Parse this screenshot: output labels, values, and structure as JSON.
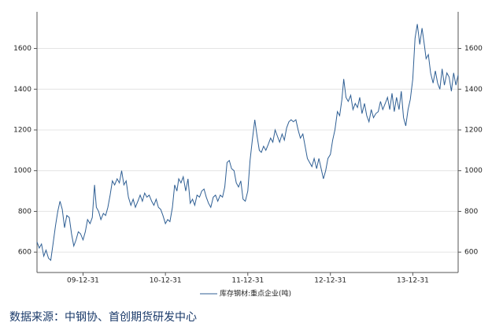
{
  "chart_data": {
    "type": "line",
    "xticks": [
      "09-12-31",
      "10-12-31",
      "11-12-31",
      "12-12-31",
      "13-12-31"
    ],
    "xlim": [
      "09-06-10",
      "14-07-20"
    ],
    "ylim": [
      500,
      1780
    ],
    "yticks": [
      600,
      800,
      1000,
      1200,
      1400,
      1600
    ],
    "y2lim": [
      500,
      1780
    ],
    "y2ticks": [
      600,
      800,
      1000,
      1200,
      1400,
      1600
    ],
    "grid": true,
    "source": "数据来源：中钢协、首创期货研发中心",
    "x": [
      "09-06-10",
      "09-06-20",
      "09-06-30",
      "09-07-10",
      "09-07-20",
      "09-07-31",
      "09-08-10",
      "09-08-20",
      "09-08-31",
      "09-09-10",
      "09-09-20",
      "09-09-30",
      "09-10-10",
      "09-10-20",
      "09-10-31",
      "09-11-10",
      "09-11-20",
      "09-11-30",
      "09-12-10",
      "09-12-20",
      "09-12-31",
      "10-01-10",
      "10-01-20",
      "10-01-31",
      "10-02-10",
      "10-02-20",
      "10-02-28",
      "10-03-10",
      "10-03-20",
      "10-03-31",
      "10-04-10",
      "10-04-20",
      "10-04-30",
      "10-05-10",
      "10-05-20",
      "10-05-31",
      "10-06-10",
      "10-06-20",
      "10-06-30",
      "10-07-10",
      "10-07-20",
      "10-07-31",
      "10-08-10",
      "10-08-20",
      "10-08-31",
      "10-09-10",
      "10-09-20",
      "10-09-30",
      "10-10-10",
      "10-10-20",
      "10-10-31",
      "10-11-10",
      "10-11-20",
      "10-11-30",
      "10-12-10",
      "10-12-20",
      "10-12-31",
      "11-01-10",
      "11-01-20",
      "11-01-31",
      "11-02-10",
      "11-02-20",
      "11-02-28",
      "11-03-10",
      "11-03-20",
      "11-03-31",
      "11-04-10",
      "11-04-20",
      "11-04-30",
      "11-05-10",
      "11-05-20",
      "11-05-31",
      "11-06-10",
      "11-06-20",
      "11-06-30",
      "11-07-10",
      "11-07-20",
      "11-07-31",
      "11-08-10",
      "11-08-20",
      "11-08-31",
      "11-09-10",
      "11-09-20",
      "11-09-30",
      "11-10-10",
      "11-10-20",
      "11-10-31",
      "11-11-10",
      "11-11-20",
      "11-11-30",
      "11-12-10",
      "11-12-20",
      "11-12-31",
      "12-01-10",
      "12-01-20",
      "12-01-31",
      "12-02-10",
      "12-02-20",
      "12-02-29",
      "12-03-10",
      "12-03-20",
      "12-03-31",
      "12-04-10",
      "12-04-20",
      "12-04-30",
      "12-05-10",
      "12-05-20",
      "12-05-31",
      "12-06-10",
      "12-06-20",
      "12-06-30",
      "12-07-10",
      "12-07-20",
      "12-07-31",
      "12-08-10",
      "12-08-20",
      "12-08-31",
      "12-09-10",
      "12-09-20",
      "12-09-30",
      "12-10-10",
      "12-10-20",
      "12-10-31",
      "12-11-10",
      "12-11-20",
      "12-11-30",
      "12-12-10",
      "12-12-20",
      "12-12-31",
      "13-01-10",
      "13-01-20",
      "13-01-31",
      "13-02-10",
      "13-02-20",
      "13-02-28",
      "13-03-10",
      "13-03-20",
      "13-03-31",
      "13-04-10",
      "13-04-20",
      "13-04-30",
      "13-05-10",
      "13-05-20",
      "13-05-31",
      "13-06-10",
      "13-06-20",
      "13-06-30",
      "13-07-10",
      "13-07-20",
      "13-07-31",
      "13-08-10",
      "13-08-20",
      "13-08-31",
      "13-09-10",
      "13-09-20",
      "13-09-30",
      "13-10-10",
      "13-10-20",
      "13-10-31",
      "13-11-10",
      "13-11-20",
      "13-11-30",
      "13-12-10",
      "13-12-20",
      "13-12-31",
      "14-01-10",
      "14-01-20",
      "14-01-31",
      "14-02-10",
      "14-02-20",
      "14-02-28",
      "14-03-10",
      "14-03-20",
      "14-03-31",
      "14-04-10",
      "14-04-20",
      "14-04-30",
      "14-05-10",
      "14-05-20",
      "14-05-31",
      "14-06-10",
      "14-06-20",
      "14-06-30",
      "14-07-10",
      "14-07-20"
    ],
    "series": [
      {
        "name": "库存钢材:重点企业(吨)",
        "color": "#2f5f94",
        "values": [
          650,
          620,
          640,
          580,
          610,
          570,
          560,
          640,
          730,
          800,
          850,
          810,
          720,
          780,
          770,
          690,
          630,
          660,
          700,
          690,
          660,
          700,
          760,
          740,
          770,
          930,
          820,
          800,
          760,
          790,
          780,
          820,
          880,
          950,
          930,
          960,
          940,
          1000,
          930,
          950,
          870,
          830,
          860,
          820,
          850,
          880,
          850,
          890,
          870,
          880,
          850,
          830,
          860,
          820,
          810,
          780,
          740,
          760,
          750,
          820,
          930,
          900,
          960,
          940,
          970,
          900,
          960,
          840,
          860,
          830,
          880,
          870,
          900,
          910,
          870,
          840,
          820,
          870,
          880,
          850,
          880,
          870,
          920,
          1040,
          1050,
          1010,
          1000,
          940,
          920,
          950,
          860,
          850,
          900,
          1050,
          1150,
          1250,
          1170,
          1100,
          1090,
          1120,
          1100,
          1130,
          1160,
          1140,
          1200,
          1170,
          1140,
          1180,
          1150,
          1210,
          1240,
          1250,
          1240,
          1250,
          1200,
          1160,
          1180,
          1120,
          1060,
          1040,
          1020,
          1060,
          1010,
          1060,
          1010,
          960,
          1000,
          1060,
          1080,
          1150,
          1200,
          1290,
          1270,
          1350,
          1450,
          1360,
          1340,
          1370,
          1300,
          1330,
          1310,
          1360,
          1280,
          1330,
          1270,
          1240,
          1300,
          1260,
          1280,
          1290,
          1340,
          1300,
          1330,
          1360,
          1300,
          1380,
          1290,
          1360,
          1300,
          1390,
          1260,
          1220,
          1300,
          1350,
          1450,
          1650,
          1720,
          1620,
          1700,
          1620,
          1550,
          1570,
          1480,
          1430,
          1490,
          1430,
          1400,
          1500,
          1420,
          1480,
          1460,
          1390,
          1480,
          1420,
          1470
        ]
      }
    ]
  }
}
